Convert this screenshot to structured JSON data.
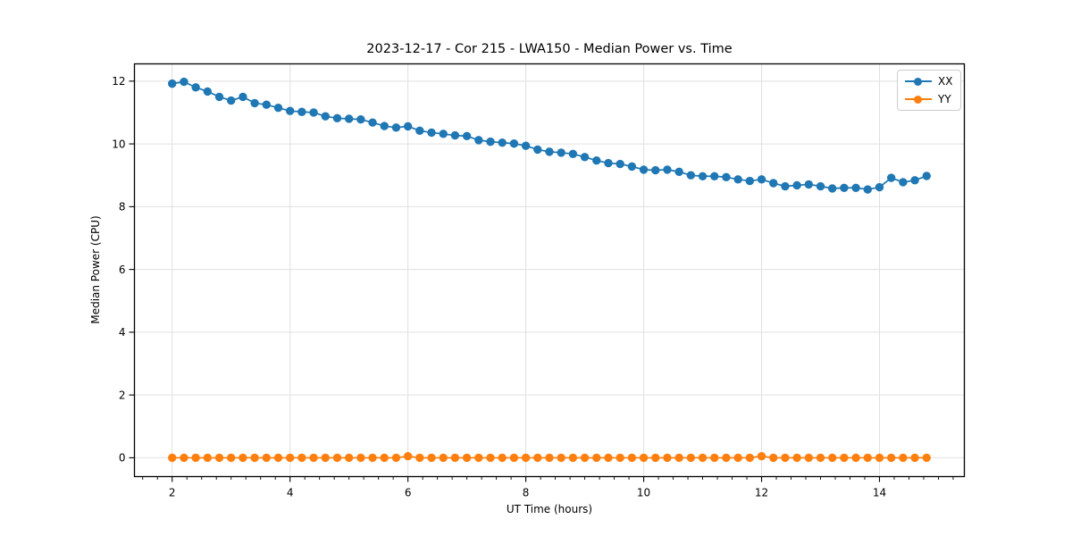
{
  "chart_data": {
    "type": "line",
    "title": "2023-12-17 - Cor 215 - LWA150 - Median Power vs. Time",
    "xlabel": "UT Time (hours)",
    "ylabel": "Median Power (CPU)",
    "xlim": [
      1.36,
      15.44
    ],
    "ylim": [
      -0.6,
      12.55
    ],
    "xticks": [
      2,
      4,
      6,
      8,
      10,
      12,
      14
    ],
    "yticks": [
      0,
      2,
      4,
      6,
      8,
      10,
      12
    ],
    "x_minor_tick_step": 0.25,
    "grid": true,
    "grid_color": "#e0e0e0",
    "legend_position": "upper right",
    "x": [
      2.0,
      2.2,
      2.4,
      2.6,
      2.8,
      3.0,
      3.2,
      3.4,
      3.6,
      3.8,
      4.0,
      4.2,
      4.4,
      4.6,
      4.8,
      5.0,
      5.2,
      5.4,
      5.6,
      5.8,
      6.0,
      6.2,
      6.4,
      6.6,
      6.8,
      7.0,
      7.2,
      7.4,
      7.6,
      7.8,
      8.0,
      8.2,
      8.4,
      8.6,
      8.8,
      9.0,
      9.2,
      9.4,
      9.6,
      9.8,
      10.0,
      10.2,
      10.4,
      10.6,
      10.8,
      11.0,
      11.2,
      11.4,
      11.6,
      11.8,
      12.0,
      12.2,
      12.4,
      12.6,
      12.8,
      13.0,
      13.2,
      13.4,
      13.6,
      13.8,
      14.0,
      14.2,
      14.4,
      14.6,
      14.8
    ],
    "series": [
      {
        "name": "XX",
        "color": "#1f77b4",
        "values": [
          11.92,
          11.98,
          11.8,
          11.67,
          11.5,
          11.38,
          11.5,
          11.3,
          11.25,
          11.15,
          11.05,
          11.02,
          11.0,
          10.88,
          10.82,
          10.8,
          10.78,
          10.68,
          10.57,
          10.52,
          10.56,
          10.42,
          10.36,
          10.32,
          10.27,
          10.25,
          10.12,
          10.07,
          10.04,
          10.01,
          9.94,
          9.82,
          9.75,
          9.72,
          9.68,
          9.58,
          9.47,
          9.39,
          9.36,
          9.28,
          9.18,
          9.16,
          9.18,
          9.11,
          9.0,
          8.97,
          8.97,
          8.94,
          8.87,
          8.82,
          8.87,
          8.75,
          8.65,
          8.68,
          8.71,
          8.65,
          8.58,
          8.6,
          8.6,
          8.55,
          8.62,
          8.92,
          8.78,
          8.84,
          8.98
        ]
      },
      {
        "name": "YY",
        "color": "#ff7f0e",
        "values": [
          0,
          0,
          0,
          0,
          0,
          0,
          0,
          0,
          0,
          0,
          0,
          0,
          0,
          0,
          0,
          0,
          0,
          0,
          0,
          0,
          0.05,
          0,
          0,
          0,
          0,
          0,
          0,
          0,
          0,
          0,
          0,
          0,
          0,
          0,
          0,
          0,
          0,
          0,
          0,
          0,
          0,
          0,
          0,
          0,
          0,
          0,
          0,
          0,
          0,
          0,
          0.05,
          0,
          0,
          0,
          0,
          0,
          0,
          0,
          0,
          0,
          0,
          0,
          0,
          0,
          0
        ]
      }
    ]
  }
}
